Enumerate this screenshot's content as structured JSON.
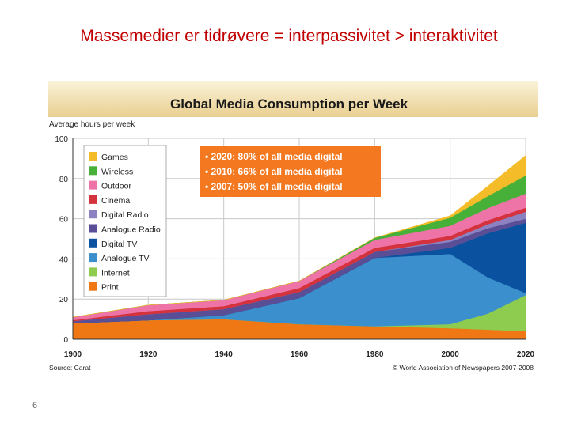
{
  "slide": {
    "title": "Massemedier er tidrøvere = interpassivitet > interaktivitet",
    "page_number": "6"
  },
  "chart_data": {
    "type": "area",
    "stacked": true,
    "title": "Global Media Consumption per Week",
    "ylabel": "Average hours per week",
    "xlabel": "",
    "ylim": [
      0,
      100
    ],
    "xlim": [
      1900,
      2020
    ],
    "y_ticks": [
      "0",
      "20",
      "40",
      "60",
      "80",
      "100"
    ],
    "x_ticks": [
      "1900",
      "1920",
      "1940",
      "1960",
      "1980",
      "2000",
      "2020"
    ],
    "x": [
      1900,
      1920,
      1940,
      1960,
      1980,
      2000,
      2010,
      2020
    ],
    "series": [
      {
        "name": "Print",
        "color": "#f07814",
        "values": [
          8,
          9.5,
          10,
          7.5,
          6.5,
          5.5,
          4.8,
          4
        ]
      },
      {
        "name": "Internet",
        "color": "#8dcc4e",
        "values": [
          0,
          0,
          0,
          0,
          0,
          2,
          8,
          18
        ]
      },
      {
        "name": "Analogue TV",
        "color": "#3a8fcc",
        "values": [
          0,
          0,
          2,
          13,
          34,
          35,
          18,
          1
        ]
      },
      {
        "name": "Digital TV",
        "color": "#0a52a0",
        "values": [
          0,
          0,
          0,
          0,
          0,
          3,
          22,
          35
        ]
      },
      {
        "name": "Analogue Radio",
        "color": "#5a4f96",
        "values": [
          1,
          3,
          3,
          3,
          3,
          3,
          2.5,
          2
        ]
      },
      {
        "name": "Digital Radio",
        "color": "#8c82c2",
        "values": [
          0,
          0,
          0,
          0,
          0,
          1,
          2,
          3.5
        ]
      },
      {
        "name": "Cinema",
        "color": "#d4323c",
        "values": [
          0.5,
          1.5,
          1.5,
          2,
          2,
          2,
          2,
          2
        ]
      },
      {
        "name": "Outdoor",
        "color": "#ee74a8",
        "values": [
          1.5,
          3,
          3,
          3.5,
          4,
          5,
          6,
          7
        ]
      },
      {
        "name": "Wireless",
        "color": "#46b038",
        "values": [
          0,
          0,
          0,
          0,
          1,
          4,
          6,
          9
        ]
      },
      {
        "name": "Games",
        "color": "#f4bc28",
        "values": [
          0,
          0,
          0,
          0,
          0,
          1,
          5,
          10
        ]
      }
    ],
    "annotations": [
      "• 2020: 80% of all media digital",
      "• 2010: 66% of all media digital",
      "• 2007: 50% of all media digital"
    ],
    "annotation_color": "#f47820",
    "source": "Source: Carat",
    "copyright": "© World Association of Newspapers 2007-2008",
    "grid": true,
    "legend_position": "top-left"
  }
}
